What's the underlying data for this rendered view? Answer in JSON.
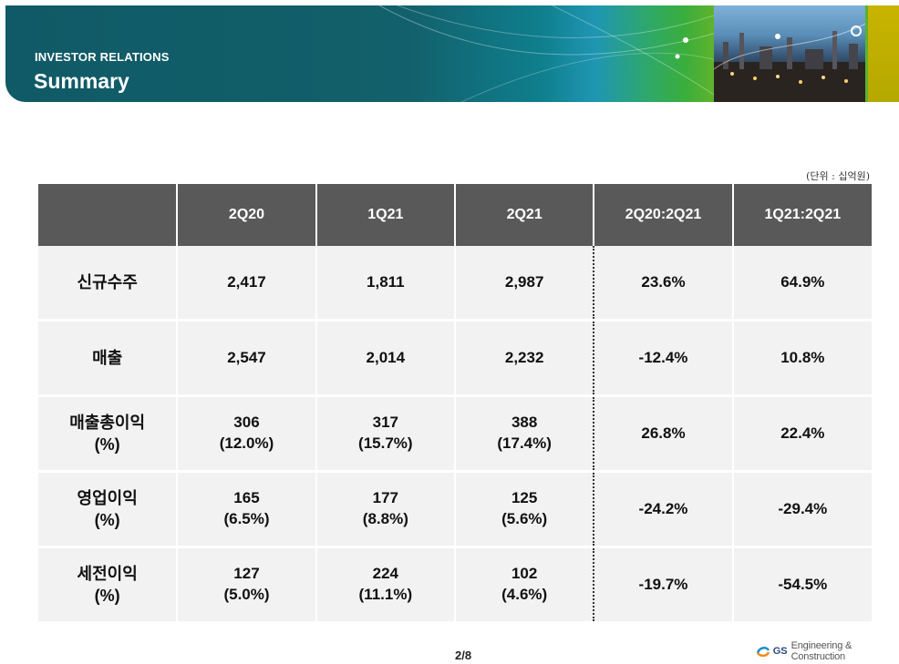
{
  "header": {
    "kicker": "INVESTOR RELATIONS",
    "title": "Summary"
  },
  "unit_note": "(단위 : 십억원)",
  "table": {
    "columns": [
      "",
      "2Q20",
      "1Q21",
      "2Q21",
      "2Q20:2Q21",
      "1Q21:2Q21"
    ],
    "rows": [
      {
        "label": [
          "신규수주"
        ],
        "v1": [
          "2,417"
        ],
        "v2": [
          "1,811"
        ],
        "v3": [
          "2,987"
        ],
        "yoy": "23.6%",
        "qoq": "64.9%"
      },
      {
        "label": [
          "매출"
        ],
        "v1": [
          "2,547"
        ],
        "v2": [
          "2,014"
        ],
        "v3": [
          "2,232"
        ],
        "yoy": "-12.4%",
        "qoq": "10.8%"
      },
      {
        "label": [
          "매출총이익",
          "(%)"
        ],
        "v1": [
          "306",
          "(12.0%)"
        ],
        "v2": [
          "317",
          "(15.7%)"
        ],
        "v3": [
          "388",
          "(17.4%)"
        ],
        "yoy": "26.8%",
        "qoq": "22.4%"
      },
      {
        "label": [
          "영업이익",
          "(%)"
        ],
        "v1": [
          "165",
          "(6.5%)"
        ],
        "v2": [
          "177",
          "(8.8%)"
        ],
        "v3": [
          "125",
          "(5.6%)"
        ],
        "yoy": "-24.2%",
        "qoq": "-29.4%"
      },
      {
        "label": [
          "세전이익",
          "(%)"
        ],
        "v1": [
          "127",
          "(5.0%)"
        ],
        "v2": [
          "224",
          "(11.1%)"
        ],
        "v3": [
          "102",
          "(4.6%)"
        ],
        "yoy": "-19.7%",
        "qoq": "-54.5%"
      }
    ]
  },
  "footer": {
    "page": "2/8",
    "brand_gs": "GS",
    "brand_text": "Engineering & Construction"
  },
  "colors": {
    "header_bg": "#595959",
    "cell_bg": "#f2f2f2",
    "banner_teal": "#0f5a66",
    "banner_green": "#3aae3c"
  }
}
